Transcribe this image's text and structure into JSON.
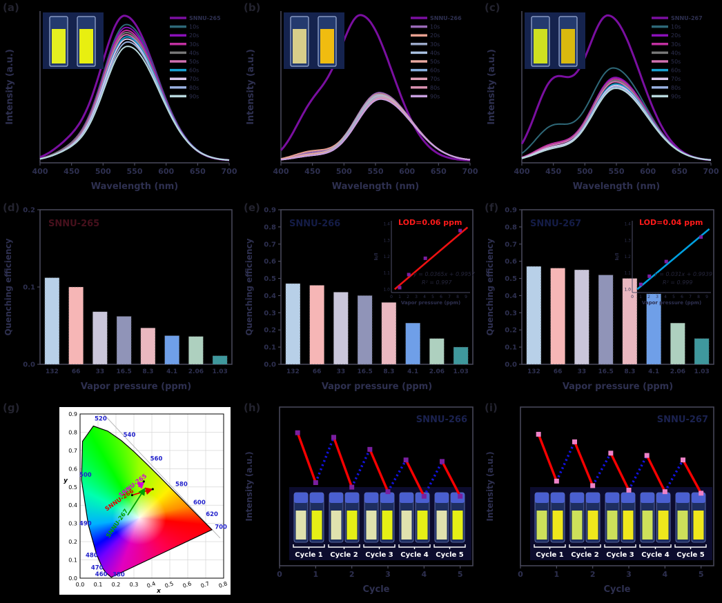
{
  "figure": {
    "background": "#000000",
    "axis_line_color": "#4a4a5e",
    "tick_text_color": "#2e3050",
    "legend_text_color": "#2e3050"
  },
  "chart_data": [
    {
      "id": "a",
      "panel_label": "(a)",
      "type": "line",
      "kind": "spectra",
      "xlabel": "Wavelength (nm)",
      "ylabel": "Intensity (a.u.)",
      "xlim": [
        400,
        700
      ],
      "xticks": [
        400,
        450,
        500,
        550,
        600,
        650,
        700
      ],
      "series": [
        {
          "name": "SNNU-265",
          "color": "#7a0fa0",
          "amp": 1.0,
          "peak": 534,
          "shoulder": 0.1
        },
        {
          "name": "10s",
          "color": "#2e6878",
          "amp": 0.94,
          "peak": 537,
          "shoulder": 0.06
        },
        {
          "name": "20s",
          "color": "#8a10b8",
          "amp": 0.92,
          "peak": 537,
          "shoulder": 0.06
        },
        {
          "name": "30s",
          "color": "#c030a0",
          "amp": 0.9,
          "peak": 537,
          "shoulder": 0.06
        },
        {
          "name": "40s",
          "color": "#787878",
          "amp": 0.885,
          "peak": 537,
          "shoulder": 0.06
        },
        {
          "name": "50s",
          "color": "#d070b0",
          "amp": 0.87,
          "peak": 537,
          "shoulder": 0.05
        },
        {
          "name": "60s",
          "color": "#18a0d0",
          "amp": 0.855,
          "peak": 538,
          "shoulder": 0.05
        },
        {
          "name": "70s",
          "color": "#d8c8ec",
          "amp": 0.84,
          "peak": 538,
          "shoulder": 0.05
        },
        {
          "name": "80s",
          "color": "#98b0e0",
          "amp": 0.82,
          "peak": 539,
          "shoulder": 0.05
        },
        {
          "name": "90s",
          "color": "#b8d8dc",
          "amp": 0.79,
          "peak": 539,
          "shoulder": 0.05
        }
      ],
      "inset_photo": {
        "name": "uv-cuvette-photo",
        "bg": "#15234e",
        "left_liquid": "#e4ef20",
        "right_liquid": "#e8ef10"
      }
    },
    {
      "id": "b",
      "panel_label": "(b)",
      "type": "line",
      "kind": "spectra",
      "xlabel": "Wavelength (nm)",
      "ylabel": "Intensity (a.u.)",
      "xlim": [
        400,
        700
      ],
      "xticks": [
        400,
        450,
        500,
        550,
        600,
        650,
        700
      ],
      "series": [
        {
          "name": "SNNU-266",
          "color": "#7a0fa0",
          "amp": 1.0,
          "peak": 527,
          "shoulder": 0.3
        },
        {
          "name": "10s",
          "color": "#9a6ab8",
          "amp": 0.47,
          "peak": 556,
          "shoulder": 0.05
        },
        {
          "name": "20s",
          "color": "#e8a090",
          "amp": 0.46,
          "peak": 556,
          "shoulder": 0.06
        },
        {
          "name": "30s",
          "color": "#9aa8c8",
          "amp": 0.455,
          "peak": 556,
          "shoulder": 0.04
        },
        {
          "name": "40s",
          "color": "#a8c0e0",
          "amp": 0.45,
          "peak": 557,
          "shoulder": 0.04
        },
        {
          "name": "50s",
          "color": "#e8a8a0",
          "amp": 0.445,
          "peak": 557,
          "shoulder": 0.04
        },
        {
          "name": "60s",
          "color": "#88b0e0",
          "amp": 0.44,
          "peak": 557,
          "shoulder": 0.03
        },
        {
          "name": "70s",
          "color": "#e0a0b8",
          "amp": 0.435,
          "peak": 558,
          "shoulder": 0.03
        },
        {
          "name": "80s",
          "color": "#d890b0",
          "amp": 0.43,
          "peak": 558,
          "shoulder": 0.03
        },
        {
          "name": "90s",
          "color": "#c8a0e0",
          "amp": 0.425,
          "peak": 558,
          "shoulder": 0.03
        }
      ],
      "inset_photo": {
        "name": "uv-vial-photo",
        "bg": "#15234e",
        "left_liquid": "#d8ce8a",
        "right_liquid": "#f0bc10"
      }
    },
    {
      "id": "c",
      "panel_label": "(c)",
      "type": "line",
      "kind": "spectra",
      "xlabel": "Wavelength (nm)",
      "ylabel": "Intensity (a.u.)",
      "xlim": [
        400,
        700
      ],
      "xticks": [
        400,
        450,
        500,
        550,
        600,
        650,
        700
      ],
      "series": [
        {
          "name": "SNNU-267",
          "color": "#7a0fa0",
          "amp": 1.0,
          "peak": 537,
          "shoulder": 0.5
        },
        {
          "name": "10s",
          "color": "#2e6878",
          "amp": 0.64,
          "peak": 545,
          "shoulder": 0.22
        },
        {
          "name": "20s",
          "color": "#8a10b8",
          "amp": 0.575,
          "peak": 548,
          "shoulder": 0.1
        },
        {
          "name": "30s",
          "color": "#c030a0",
          "amp": 0.565,
          "peak": 548,
          "shoulder": 0.1
        },
        {
          "name": "40s",
          "color": "#787878",
          "amp": 0.555,
          "peak": 548,
          "shoulder": 0.09
        },
        {
          "name": "50s",
          "color": "#d070b0",
          "amp": 0.545,
          "peak": 548,
          "shoulder": 0.09
        },
        {
          "name": "60s",
          "color": "#18a0d0",
          "amp": 0.53,
          "peak": 549,
          "shoulder": 0.08
        },
        {
          "name": "70s",
          "color": "#d8c8ec",
          "amp": 0.52,
          "peak": 549,
          "shoulder": 0.08
        },
        {
          "name": "80s",
          "color": "#98b0e0",
          "amp": 0.51,
          "peak": 549,
          "shoulder": 0.07
        },
        {
          "name": "90s",
          "color": "#b8d8dc",
          "amp": 0.5,
          "peak": 549,
          "shoulder": 0.07
        }
      ],
      "inset_photo": {
        "name": "uv-vial-photo",
        "bg": "#15234e",
        "left_liquid": "#cfe020",
        "right_liquid": "#d9b90f"
      }
    },
    {
      "id": "d",
      "panel_label": "(d)",
      "type": "bar",
      "kind": "bars",
      "title": "SNNU-265",
      "title_color": "#46101c",
      "xlabel": "Vapor pressure (ppm)",
      "ylabel": "Quenching efficiency",
      "categories": [
        "132",
        "66",
        "33",
        "16.5",
        "8.3",
        "4.1",
        "2.06",
        "1.03"
      ],
      "values": [
        0.112,
        0.1,
        0.068,
        0.062,
        0.047,
        0.037,
        0.036,
        0.011
      ],
      "bar_colors": [
        "#b8d0e8",
        "#f6b6b6",
        "#cac6da",
        "#9094b8",
        "#eab8c0",
        "#6f9fe8",
        "#aed0bf",
        "#3f989d"
      ],
      "ylim": [
        0,
        0.2
      ],
      "yticks": [
        "0.0",
        "0.1",
        "0.2"
      ]
    },
    {
      "id": "e",
      "panel_label": "(e)",
      "type": "bar",
      "kind": "bars",
      "title": "SNNU-266",
      "title_color": "#141c46",
      "xlabel": "Vapor pressure (ppm)",
      "ylabel": "Quenching efficiency",
      "categories": [
        "132",
        "66",
        "33",
        "16.5",
        "8.3",
        "4.1",
        "2.06",
        "1.03"
      ],
      "values": [
        0.47,
        0.46,
        0.42,
        0.4,
        0.36,
        0.24,
        0.15,
        0.1
      ],
      "bar_colors": [
        "#b8d0e8",
        "#f6b6b6",
        "#cac6da",
        "#9094b8",
        "#eab8c0",
        "#6f9fe8",
        "#aed0bf",
        "#3f989d"
      ],
      "ylim": [
        0,
        0.9
      ],
      "yticks": [
        "0.0",
        "0.1",
        "0.2",
        "0.3",
        "0.4",
        "0.5",
        "0.6",
        "0.7",
        "0.8",
        "0.9"
      ],
      "inset": {
        "lod_text": "LOD=0.06 ppm",
        "lod_color": "#ff1a1a",
        "equation": "y = 0.0365x + 0.9957",
        "r2": "R² = 0.997",
        "xlabel": "Vapor pressure (ppm)",
        "ylabel": "I₀/I",
        "xticks": [
          "0",
          "1",
          "2",
          "3",
          "4",
          "5",
          "6",
          "7",
          "8",
          "9"
        ],
        "yticks": [
          "1.0",
          "1.1",
          "1.2",
          "1.3",
          "1.4"
        ],
        "line_color": "#ee1111",
        "point_color": "#7a1fa0",
        "points": [
          [
            1.0,
            1.01
          ],
          [
            2.1,
            1.09
          ],
          [
            4.1,
            1.19
          ],
          [
            8.3,
            1.36
          ]
        ],
        "fit_line": [
          [
            0.4,
            1.0
          ],
          [
            9.2,
            1.38
          ]
        ]
      }
    },
    {
      "id": "f",
      "panel_label": "(f)",
      "type": "bar",
      "kind": "bars",
      "title": "SNNU-267",
      "title_color": "#141c46",
      "xlabel": "Vapor pressure (ppm)",
      "ylabel": "Quenching efficiency",
      "categories": [
        "132",
        "66",
        "33",
        "16.5",
        "8.3",
        "4.1",
        "2.06",
        "1.03"
      ],
      "values": [
        0.57,
        0.56,
        0.55,
        0.52,
        0.5,
        0.41,
        0.24,
        0.15
      ],
      "bar_colors": [
        "#b8d0e8",
        "#f6b6b6",
        "#cac6da",
        "#9094b8",
        "#eab8c0",
        "#6f9fe8",
        "#aed0bf",
        "#3f989d"
      ],
      "ylim": [
        0,
        0.9
      ],
      "yticks": [
        "0.0",
        "0.1",
        "0.2",
        "0.3",
        "0.4",
        "0.5",
        "0.6",
        "0.7",
        "0.8",
        "0.9"
      ],
      "inset": {
        "lod_text": "LOD=0.04 ppm",
        "lod_color": "#ff1a1a",
        "equation": "y = 0.031x + 0.9939",
        "r2": "R² = 0.999",
        "xlabel": "Vapor pressure (ppm)",
        "ylabel": "I₀/I",
        "xticks": [
          "0",
          "1",
          "2",
          "3",
          "4",
          "5",
          "6",
          "7",
          "8",
          "9"
        ],
        "yticks": [
          "1.0",
          "1.1",
          "1.2",
          "1.3",
          "1.4"
        ],
        "line_color": "#00a0e0",
        "point_color": "#7a1fa0",
        "points": [
          [
            1.03,
            1.03
          ],
          [
            2.06,
            1.08
          ],
          [
            4.1,
            1.17
          ],
          [
            8.3,
            1.32
          ]
        ],
        "fit_line": [
          [
            0.6,
            1.0
          ],
          [
            9.3,
            1.37
          ]
        ]
      }
    },
    {
      "id": "g",
      "panel_label": "(g)",
      "type": "scatter",
      "kind": "cie",
      "xlabel": "x",
      "ylabel": "y",
      "xlim": [
        0,
        0.8
      ],
      "ylim": [
        0,
        0.9
      ],
      "xticks": [
        "0.0",
        "0.1",
        "0.2",
        "0.3",
        "0.4",
        "0.5",
        "0.6",
        "0.7",
        "0.8"
      ],
      "yticks": [
        "0.0",
        "0.1",
        "0.2",
        "0.3",
        "0.4",
        "0.5",
        "0.6",
        "0.7",
        "0.8",
        "0.9"
      ],
      "wavelength_label_color": "#2222cc",
      "wavelength_labels": [
        {
          "t": "520",
          "p": [
            0.115,
            0.865
          ]
        },
        {
          "t": "540",
          "p": [
            0.275,
            0.775
          ]
        },
        {
          "t": "560",
          "p": [
            0.425,
            0.645
          ]
        },
        {
          "t": "580",
          "p": [
            0.565,
            0.505
          ]
        },
        {
          "t": "600",
          "p": [
            0.665,
            0.405
          ]
        },
        {
          "t": "620",
          "p": [
            0.735,
            0.34
          ]
        },
        {
          "t": "700",
          "p": [
            0.785,
            0.27
          ]
        },
        {
          "t": "500",
          "p": [
            0.03,
            0.555
          ]
        },
        {
          "t": "490",
          "p": [
            0.03,
            0.29
          ]
        },
        {
          "t": "480",
          "p": [
            0.065,
            0.115
          ]
        },
        {
          "t": "470",
          "p": [
            0.095,
            0.048
          ]
        },
        {
          "t": "460",
          "p": [
            0.118,
            0.012
          ]
        },
        {
          "t": "380",
          "p": [
            0.215,
            0.01
          ]
        }
      ],
      "locus": [
        [
          0.1738,
          0.0049
        ],
        [
          0.144,
          0.03
        ],
        [
          0.124,
          0.058
        ],
        [
          0.0913,
          0.1327
        ],
        [
          0.0454,
          0.295
        ],
        [
          0.0082,
          0.5384
        ],
        [
          0.0139,
          0.7502
        ],
        [
          0.0743,
          0.8338
        ],
        [
          0.1547,
          0.8059
        ],
        [
          0.2296,
          0.7543
        ],
        [
          0.3016,
          0.6923
        ],
        [
          0.3731,
          0.6245
        ],
        [
          0.4441,
          0.5547
        ],
        [
          0.5125,
          0.4866
        ],
        [
          0.5752,
          0.4242
        ],
        [
          0.627,
          0.3725
        ],
        [
          0.6915,
          0.3083
        ],
        [
          0.7347,
          0.2653
        ]
      ],
      "samples": [
        {
          "name": "SNNU-265",
          "color": "#d400d4",
          "label_pos": [
            0.3,
            0.5
          ],
          "rot": -38,
          "arrow": [
            [
              0.325,
              0.5
            ],
            [
              0.355,
              0.527
            ]
          ]
        },
        {
          "name": "SNNU-266",
          "color": "#e00000",
          "label_pos": [
            0.225,
            0.42
          ],
          "rot": -35,
          "arrow": [
            [
              0.29,
              0.455
            ],
            [
              0.4,
              0.487
            ]
          ]
        },
        {
          "name": "SNNU-267",
          "color": "#00a000",
          "label_pos": [
            0.215,
            0.295
          ],
          "rot": -55,
          "arrow": [
            [
              0.265,
              0.345
            ],
            [
              0.36,
              0.49
            ]
          ]
        }
      ],
      "dots": [
        [
          0.355,
          0.53
        ],
        [
          0.29,
          0.455
        ],
        [
          0.405,
          0.488
        ]
      ]
    },
    {
      "id": "h",
      "panel_label": "(h)",
      "type": "line",
      "kind": "cycles",
      "title": "SNNU-266",
      "title_color": "#1b2250",
      "xlabel": "Cycle",
      "ylabel": "Intensity (a.u.)",
      "xticks": [
        "0",
        "1",
        "2",
        "3",
        "4",
        "5"
      ],
      "x": [
        0.5,
        1,
        1.5,
        2,
        2.5,
        3,
        3.5,
        4,
        4.5,
        5
      ],
      "y": [
        0.88,
        0.55,
        0.85,
        0.52,
        0.77,
        0.49,
        0.7,
        0.46,
        0.69,
        0.46
      ],
      "quench_color": "#f50000",
      "recover_color": "#1212dd",
      "marker_color": "#7a1fa0",
      "cycle_labels": [
        "Cycle 1",
        "Cycle 2",
        "Cycle 3",
        "Cycle 4",
        "Cycle 5"
      ],
      "photo": {
        "bg": "#0c0c2e",
        "cap": "#4a5fd0",
        "liquid_dim": "#e0e2ae",
        "liquid_bright": "#e5ef16"
      }
    },
    {
      "id": "i",
      "panel_label": "(i)",
      "type": "line",
      "kind": "cycles",
      "title": "SNNU-267",
      "title_color": "#1b2250",
      "xlabel": "Cycle",
      "ylabel": "Intensity (a.u.)",
      "xticks": [
        "0",
        "1",
        "2",
        "3",
        "4",
        "5"
      ],
      "x": [
        0.5,
        1,
        1.5,
        2,
        2.5,
        3,
        3.5,
        4,
        4.5,
        5
      ],
      "y": [
        0.87,
        0.56,
        0.82,
        0.53,
        0.745,
        0.5,
        0.73,
        0.49,
        0.7,
        0.48
      ],
      "quench_color": "#f50000",
      "recover_color": "#1212dd",
      "marker_color": "#ee82c8",
      "cycle_labels": [
        "Cycle 1",
        "Cycle 2",
        "Cycle 3",
        "Cycle 4",
        "Cycle 5"
      ],
      "photo": {
        "bg": "#0c0c2e",
        "cap": "#4a5fd0",
        "liquid_dim": "#cde05a",
        "liquid_bright": "#efe71c"
      }
    }
  ]
}
